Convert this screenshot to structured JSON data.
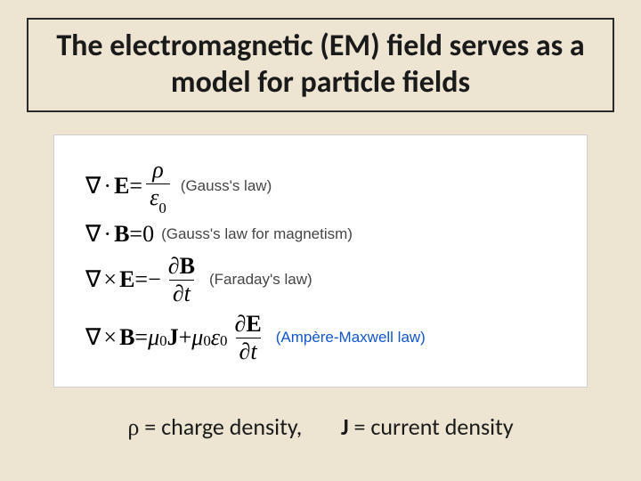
{
  "title": "The electromagnetic (EM) field serves as a model for particle fields",
  "equations": [
    {
      "lhs_op": "·",
      "lhs_vec": "E",
      "rhs_type": "frac",
      "rhs_num": "ρ",
      "rhs_den_pre": "ε",
      "rhs_den_sub": "0",
      "label": "(Gauss's law)",
      "label_color": "#454545"
    },
    {
      "lhs_op": "·",
      "lhs_vec": "B",
      "rhs_type": "zero",
      "rhs_zero": "0",
      "label": "(Gauss's law for magnetism)",
      "label_color": "#454545"
    },
    {
      "lhs_op": "×",
      "lhs_vec": "E",
      "rhs_type": "neg_partial",
      "neg": "−",
      "partial_num_sym": "∂",
      "partial_num_vec": "B",
      "partial_den_sym": "∂",
      "partial_den_var": "t",
      "label": "(Faraday's law)",
      "label_color": "#454545"
    },
    {
      "lhs_op": "×",
      "lhs_vec": "B",
      "rhs_type": "ampere",
      "mu": "μ",
      "mu_sub": "0",
      "j_vec": "J",
      "plus": " + ",
      "eps": "ε",
      "eps_sub": "0",
      "partial_num_sym": "∂",
      "partial_num_vec": "E",
      "partial_den_sym": "∂",
      "partial_den_var": "t",
      "label": "(Ampère-Maxwell law)",
      "label_color": "#1155cc"
    }
  ],
  "symbols": {
    "nabla": "∇",
    "equals": " = "
  },
  "footer": {
    "rho": "ρ",
    "rho_text": " = charge density,",
    "j_vec": "J",
    "j_text": " = current density"
  },
  "style": {
    "background": "#ede5d2",
    "title_border": "#2a2a2a",
    "title_fontsize": 34,
    "eq_box_bg": "#ffffff",
    "eq_box_border": "#d0d0d0",
    "eq_fontsize": 26,
    "label_fontsize": 17,
    "footer_fontsize": 26
  }
}
